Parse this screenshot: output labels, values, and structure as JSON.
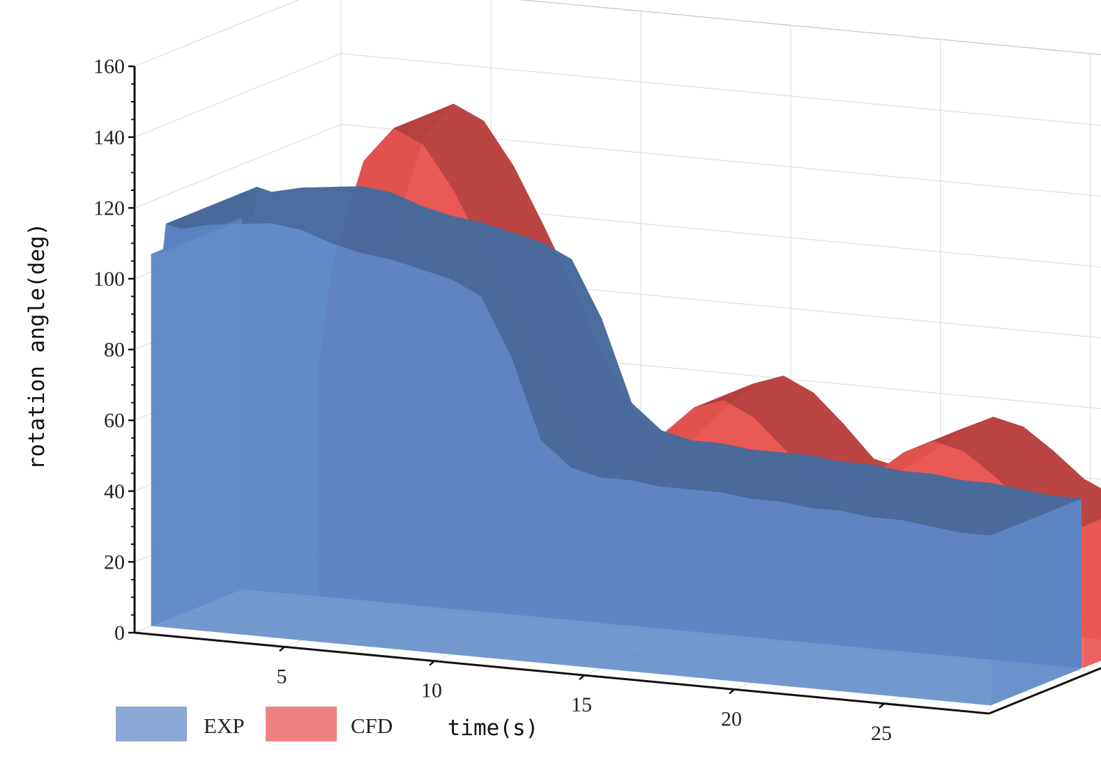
{
  "chart_data": {
    "type": "area",
    "view": "3d-waterfall",
    "xlabel": "time(s)",
    "ylabel": "rotation angle(deg)",
    "xlim": [
      0,
      28.5
    ],
    "ylim": [
      0,
      160
    ],
    "xticks": [
      5,
      10,
      15,
      20,
      25
    ],
    "yticks": [
      0,
      20,
      40,
      60,
      80,
      100,
      120,
      140,
      160
    ],
    "grid": true,
    "legend_position": "bottom-left",
    "series": [
      {
        "name": "CFD",
        "color": "#e8524f",
        "x": [
          2.5,
          3,
          4,
          5,
          6,
          7,
          8,
          9,
          10,
          11,
          12,
          13,
          14,
          15,
          16,
          17,
          18,
          19,
          20,
          21,
          22,
          23,
          24,
          25,
          26,
          27,
          28
        ],
        "values": [
          65,
          96,
          124,
          134,
          130,
          118,
          102,
          85,
          67,
          52,
          43,
          46,
          55,
          63,
          66,
          62,
          54,
          45,
          43,
          49,
          56,
          60,
          58,
          52,
          45,
          41,
          40
        ]
      },
      {
        "name": "EXP",
        "color": "#5b86c5",
        "x": [
          0,
          0.4,
          0.5,
          1,
          2,
          3,
          4,
          5,
          6,
          7,
          8,
          9,
          10,
          11,
          12,
          13,
          14,
          15,
          16,
          17,
          18,
          19,
          20,
          21,
          22,
          23,
          24,
          25,
          26,
          27,
          28
        ],
        "values": [
          105,
          106,
          114,
          113,
          115,
          116,
          117,
          116,
          113,
          111,
          110,
          108,
          106,
          102,
          86,
          63,
          56,
          54,
          54,
          53,
          53,
          53,
          52,
          52,
          51,
          51,
          50,
          50,
          49,
          48,
          48
        ]
      }
    ]
  }
}
